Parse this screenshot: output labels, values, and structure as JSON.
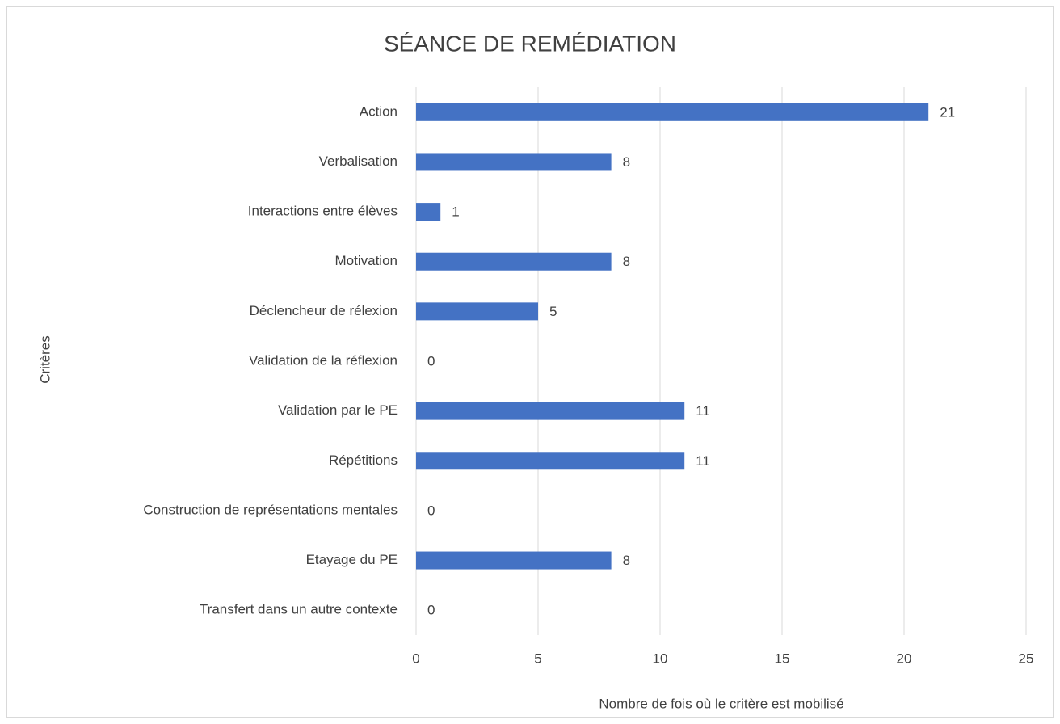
{
  "chart_data": {
    "type": "bar",
    "orientation": "horizontal",
    "title": "SÉANCE DE REMÉDIATION",
    "x_label": "Nombre de fois où le critère est mobilisé",
    "y_label": "Critères",
    "categories": [
      "Action",
      "Verbalisation",
      "Interactions entre élèves",
      "Motivation",
      "Déclencheur de rélexion",
      "Validation de la réflexion",
      "Validation par le PE",
      "Répétitions",
      "Construction de représentations mentales",
      "Etayage du PE",
      "Transfert dans un autre contexte"
    ],
    "values": [
      21,
      8,
      1,
      8,
      5,
      0,
      11,
      11,
      0,
      8,
      0
    ],
    "color": "#4472c4",
    "xlim": [
      0,
      25
    ],
    "xticks": [
      0,
      5,
      10,
      15,
      20,
      25
    ],
    "grid": true
  }
}
